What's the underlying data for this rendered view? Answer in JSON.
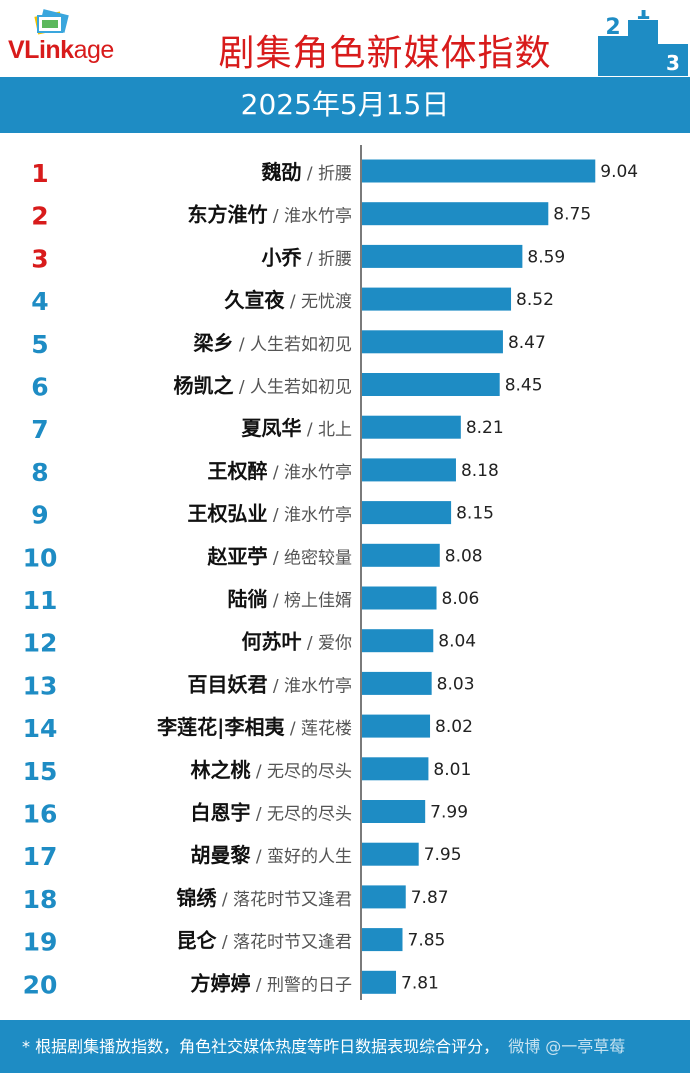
{
  "header": {
    "logo_text_bold": "VLink",
    "logo_text_rest": "age",
    "title": "剧集角色新媒体指数",
    "date": "2025年5月15日",
    "podium_labels": [
      "2",
      "1",
      "3"
    ]
  },
  "footer": {
    "note": "* 根据剧集播放指数，角色社交媒体热度等昨日数据表现综合评分，",
    "watermark": "微博 @一亭草莓"
  },
  "colors": {
    "accent_blue": "#1e8cc4",
    "bar_blue": "#1e8cc4",
    "title_red": "#d81b1b",
    "rank_red": "#d81b1b",
    "rank_blue": "#1e8cc4"
  },
  "chart_data": {
    "type": "bar",
    "orientation": "horizontal",
    "title": "剧集角色新媒体指数",
    "subtitle": "2025年5月15日",
    "xlabel": "",
    "ylabel": "",
    "grid": false,
    "legend": "none",
    "xlim": [
      7.6,
      9.1
    ],
    "rows": [
      {
        "rank": "1",
        "character": "魏劭",
        "drama": "折腰",
        "value": 9.04
      },
      {
        "rank": "2",
        "character": "东方淮竹",
        "drama": "淮水竹亭",
        "value": 8.75
      },
      {
        "rank": "3",
        "character": "小乔",
        "drama": "折腰",
        "value": 8.59
      },
      {
        "rank": "4",
        "character": "久宣夜",
        "drama": "无忧渡",
        "value": 8.52
      },
      {
        "rank": "5",
        "character": "梁乡",
        "drama": "人生若如初见",
        "value": 8.47
      },
      {
        "rank": "6",
        "character": "杨凯之",
        "drama": "人生若如初见",
        "value": 8.45
      },
      {
        "rank": "7",
        "character": "夏凤华",
        "drama": "北上",
        "value": 8.21
      },
      {
        "rank": "8",
        "character": "王权醉",
        "drama": "淮水竹亭",
        "value": 8.18
      },
      {
        "rank": "9",
        "character": "王权弘业",
        "drama": "淮水竹亭",
        "value": 8.15
      },
      {
        "rank": "10",
        "character": "赵亚苧",
        "drama": "绝密较量",
        "value": 8.08
      },
      {
        "rank": "11",
        "character": "陆徜",
        "drama": "榜上佳婿",
        "value": 8.06
      },
      {
        "rank": "12",
        "character": "何苏叶",
        "drama": "爱你",
        "value": 8.04
      },
      {
        "rank": "13",
        "character": "百目妖君",
        "drama": "淮水竹亭",
        "value": 8.03
      },
      {
        "rank": "14",
        "character": "李莲花|李相夷",
        "drama": "莲花楼",
        "value": 8.02
      },
      {
        "rank": "15",
        "character": "林之桃",
        "drama": "无尽的尽头",
        "value": 8.01
      },
      {
        "rank": "16",
        "character": "白恩宇",
        "drama": "无尽的尽头",
        "value": 7.99
      },
      {
        "rank": "17",
        "character": "胡曼黎",
        "drama": "蛮好的人生",
        "value": 7.95
      },
      {
        "rank": "18",
        "character": "锦绣",
        "drama": "落花时节又逢君",
        "value": 7.87
      },
      {
        "rank": "19",
        "character": "昆仑",
        "drama": "落花时节又逢君",
        "value": 7.85
      },
      {
        "rank": "20",
        "character": "方婷婷",
        "drama": "刑警的日子",
        "value": 7.81
      }
    ]
  }
}
